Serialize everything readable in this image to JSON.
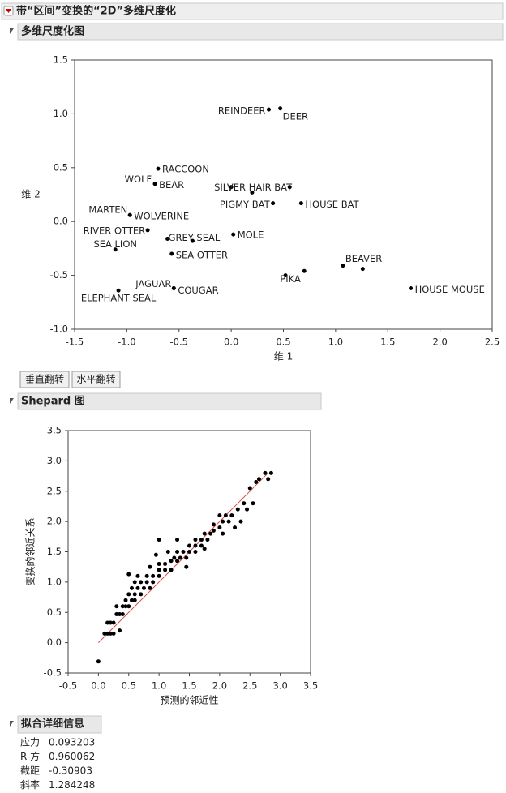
{
  "header": {
    "title": "带“区间”变换的“2D”多维尺度化"
  },
  "sections": {
    "mds": "多维尺度化图",
    "shepard": "Shepard 图",
    "fit": "拟合详细信息"
  },
  "buttons": [
    "垂直翻转",
    "水平翻转"
  ],
  "fit_details": [
    [
      "应力",
      "0.093203"
    ],
    [
      "R 方",
      "0.960062"
    ],
    [
      "截距",
      "-0.30903"
    ],
    [
      "斜率",
      "1.284248"
    ]
  ],
  "chart_data": [
    {
      "type": "scatter",
      "xlabel": "维 1",
      "ylabel": "维 2",
      "color": "#000000",
      "labels": [
        "REINDEER",
        "DEER",
        "RACCOON",
        "WOLF",
        "BEAR",
        "SILVER HAIR BAT",
        null,
        null,
        "PIGMY BAT",
        "HOUSE BAT",
        "MARTEN",
        "WOLVERINE",
        "RIVER OTTER",
        "GREY SEAL",
        null,
        "MOLE",
        "SEA LION",
        "SEA OTTER",
        "BEAVER",
        null,
        null,
        "PIKA",
        "JAGUAR",
        "COUGAR",
        "ELEPHANT SEAL",
        "HOUSE MOUSE"
      ],
      "x": [
        0.36,
        0.47,
        -0.7,
        -0.73,
        -0.73,
        0.0,
        0.56,
        0.2,
        0.4,
        0.67,
        -0.97,
        -0.97,
        -0.8,
        -0.61,
        -0.37,
        0.02,
        -1.11,
        -0.57,
        1.07,
        1.26,
        0.7,
        0.52,
        -0.55,
        -0.55,
        -1.08,
        1.72
      ],
      "y": [
        1.04,
        1.05,
        0.49,
        0.35,
        0.35,
        0.32,
        0.32,
        0.27,
        0.17,
        0.17,
        0.06,
        0.06,
        -0.08,
        -0.16,
        -0.18,
        -0.12,
        -0.26,
        -0.3,
        -0.41,
        -0.44,
        -0.46,
        -0.5,
        -0.62,
        -0.62,
        -0.64,
        -0.62
      ],
      "xlim": [
        -1.5,
        2.5
      ],
      "xticks": [
        -1.5,
        {
          "value": -1,
          "label": "-1.0"
        },
        -0.5,
        {
          "value": 0,
          "label": "0.0"
        },
        0.5,
        {
          "value": 1,
          "label": "1.0"
        },
        1.5,
        {
          "value": 2,
          "label": "2.0"
        },
        2.5
      ],
      "ylim": [
        -1,
        1.5
      ],
      "yticks": [
        {
          "value": -1,
          "label": "-1.0"
        },
        -0.5,
        {
          "value": 0,
          "label": "0.0"
        },
        0.5,
        {
          "value": 1,
          "label": "1.0"
        },
        1.5
      ]
    },
    {
      "type": "scatter",
      "xlabel": "预测的邻近性",
      "ylabel": "变换的邻近关系",
      "color": "#000000",
      "x": [
        0.0,
        0.1,
        0.15,
        0.2,
        0.25,
        0.15,
        0.2,
        0.25,
        0.3,
        0.35,
        0.4,
        0.3,
        0.4,
        0.45,
        0.5,
        0.45,
        0.55,
        0.6,
        0.5,
        0.6,
        0.7,
        0.55,
        0.65,
        0.75,
        0.85,
        0.5,
        0.6,
        0.7,
        0.8,
        0.9,
        0.8,
        0.9,
        1.0,
        0.85,
        1.0,
        1.1,
        1.2,
        1.0,
        1.1,
        1.2,
        1.3,
        1.25,
        1.35,
        1.45,
        1.3,
        1.4,
        1.5,
        1.6,
        1.5,
        1.6,
        1.7,
        1.6,
        1.7,
        1.8,
        1.3,
        1.75,
        1.85,
        1.9,
        2.0,
        1.9,
        2.05,
        2.15,
        2.1,
        2.2,
        2.35,
        2.3,
        2.45,
        2.4,
        2.55,
        2.5,
        2.6,
        2.65,
        2.75,
        2.85,
        2.8,
        1.15,
        0.95,
        1.0,
        2.05,
        2.25,
        0.35,
        0.65,
        1.45,
        1.75,
        2.0
      ],
      "y": [
        -0.31,
        0.15,
        0.15,
        0.15,
        0.15,
        0.33,
        0.33,
        0.33,
        0.47,
        0.47,
        0.47,
        0.6,
        0.6,
        0.6,
        0.6,
        0.7,
        0.7,
        0.7,
        0.8,
        0.8,
        0.8,
        0.9,
        0.9,
        0.9,
        0.9,
        1.13,
        1.0,
        1.0,
        1.0,
        1.0,
        1.1,
        1.1,
        1.1,
        1.25,
        1.2,
        1.2,
        1.2,
        1.3,
        1.3,
        1.35,
        1.35,
        1.4,
        1.4,
        1.4,
        1.5,
        1.5,
        1.5,
        1.5,
        1.6,
        1.6,
        1.6,
        1.7,
        1.7,
        1.7,
        1.7,
        1.8,
        1.8,
        1.85,
        1.9,
        1.95,
        2.0,
        2.0,
        2.1,
        2.1,
        2.0,
        2.2,
        2.2,
        2.3,
        2.3,
        2.55,
        2.65,
        2.7,
        2.8,
        2.8,
        2.7,
        1.5,
        1.45,
        1.7,
        1.8,
        1.9,
        0.2,
        1.1,
        1.25,
        1.55,
        2.1
      ],
      "reference_line": {
        "x": [
          0,
          2.8
        ],
        "y": [
          0,
          2.8
        ],
        "color": "#d05050"
      },
      "xlim": [
        -0.5,
        3.5
      ],
      "xticks": [
        -0.5,
        {
          "value": 0,
          "label": "0.0"
        },
        0.5,
        {
          "value": 1,
          "label": "1.0"
        },
        1.5,
        {
          "value": 2,
          "label": "2.0"
        },
        2.5,
        {
          "value": 3,
          "label": "3.0"
        },
        3.5
      ],
      "ylim": [
        -0.5,
        3.5
      ],
      "yticks": [
        -0.5,
        {
          "value": 0,
          "label": "0.0"
        },
        0.5,
        {
          "value": 1,
          "label": "1.0"
        },
        1.5,
        {
          "value": 2,
          "label": "2.0"
        },
        2.5,
        {
          "value": 3,
          "label": "3.0"
        },
        3.5
      ]
    }
  ]
}
